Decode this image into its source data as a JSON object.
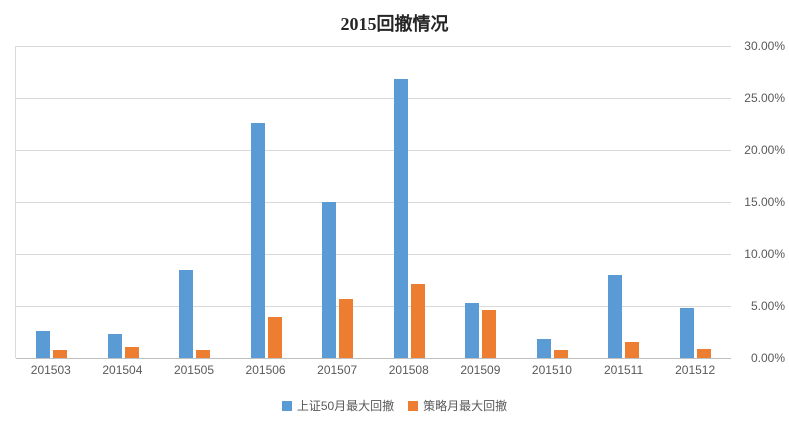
{
  "chart_data": {
    "type": "bar",
    "title": "2015回撤情况",
    "categories": [
      "201503",
      "201504",
      "201505",
      "201506",
      "201507",
      "201508",
      "201509",
      "201510",
      "201511",
      "201512"
    ],
    "series": [
      {
        "name": "上证50月最大回撤",
        "color": "#5B9BD5",
        "values": [
          2.6,
          2.3,
          8.5,
          22.6,
          15.0,
          26.8,
          5.3,
          1.8,
          8.0,
          4.8
        ]
      },
      {
        "name": "策略月最大回撤",
        "color": "#ED7D31",
        "values": [
          0.8,
          1.1,
          0.8,
          3.9,
          5.7,
          7.1,
          4.6,
          0.8,
          1.5,
          0.9
        ]
      }
    ],
    "xlabel": "",
    "ylabel": "",
    "ylim": [
      0,
      30
    ],
    "yticks": [
      0,
      5,
      10,
      15,
      20,
      25,
      30
    ],
    "ytick_labels": [
      "0.00%",
      "5.00%",
      "10.00%",
      "15.00%",
      "20.00%",
      "25.00%",
      "30.00%"
    ],
    "y_axis_side": "right",
    "grid": true,
    "legend_position": "bottom"
  }
}
